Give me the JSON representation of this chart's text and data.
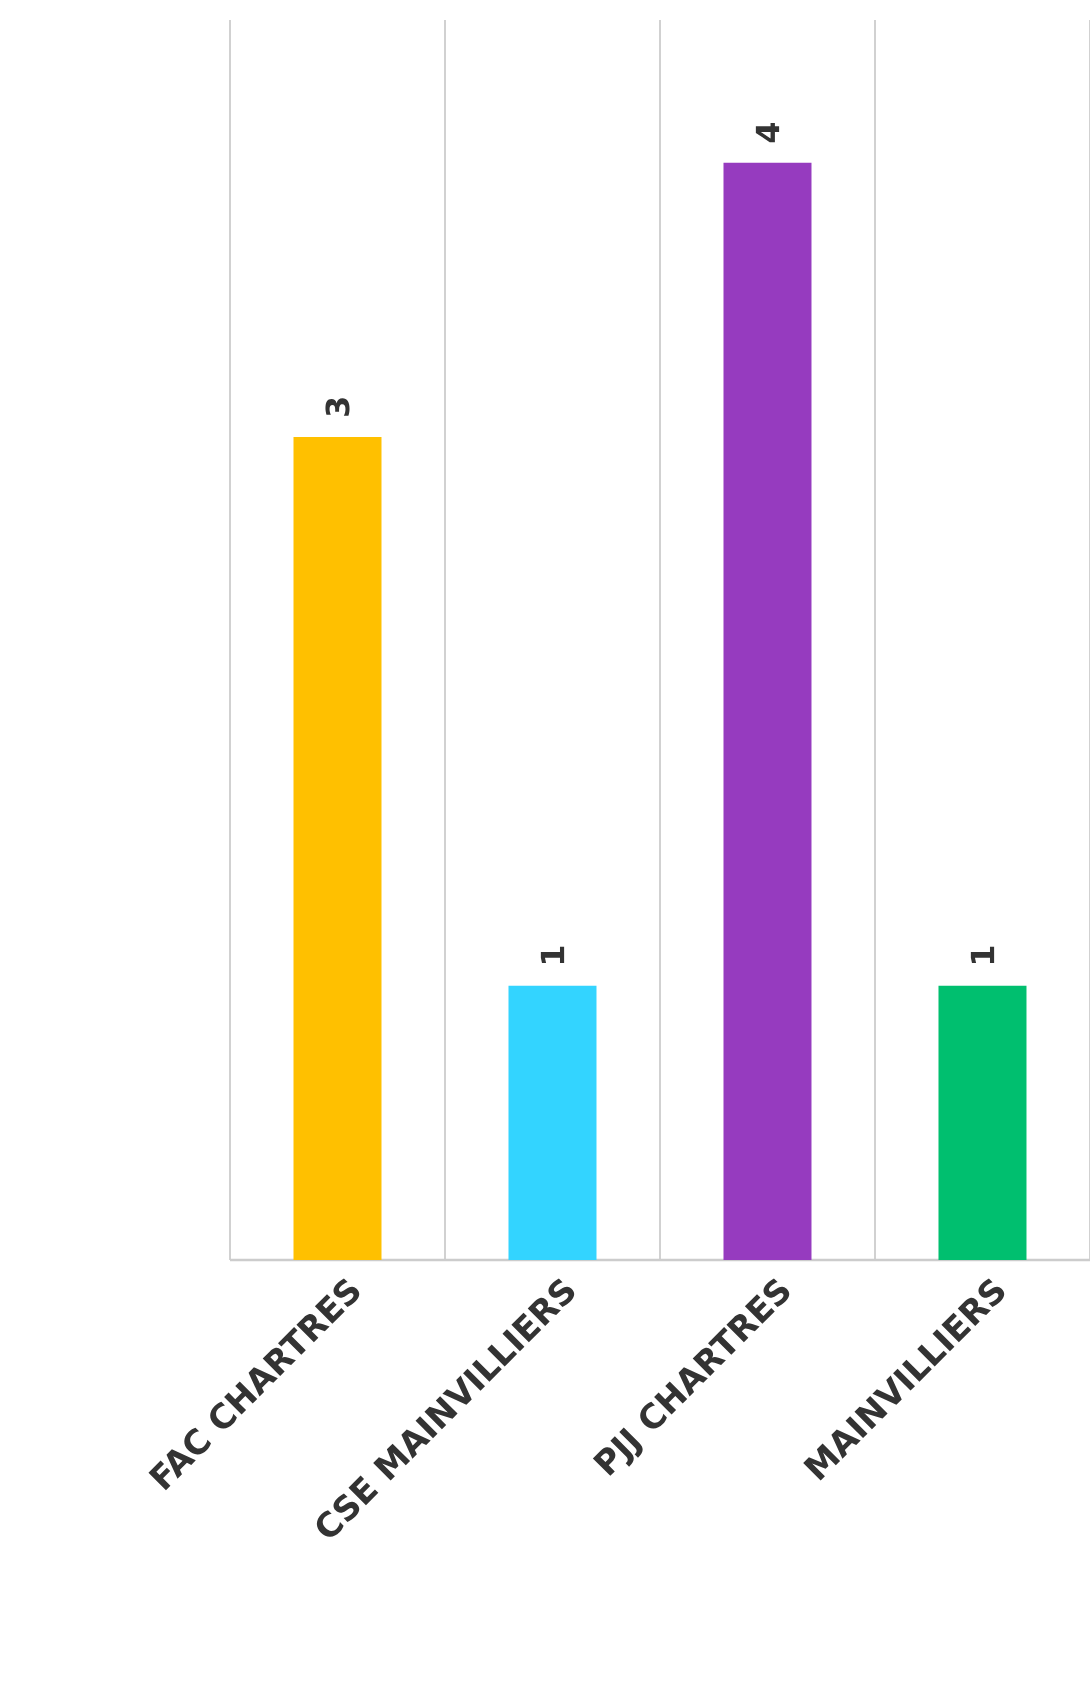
{
  "chart_data": {
    "type": "bar",
    "categories": [
      "FAC CHARTRES",
      "CSE MAINVILLIERS",
      "PJJ CHARTRES",
      "MAINVILLIERS"
    ],
    "values": [
      3,
      1,
      4,
      1
    ],
    "colors": [
      "#ffc000",
      "#33d4ff",
      "#963bbf",
      "#00bf6f"
    ],
    "data_labels": true,
    "grid": "x"
  }
}
